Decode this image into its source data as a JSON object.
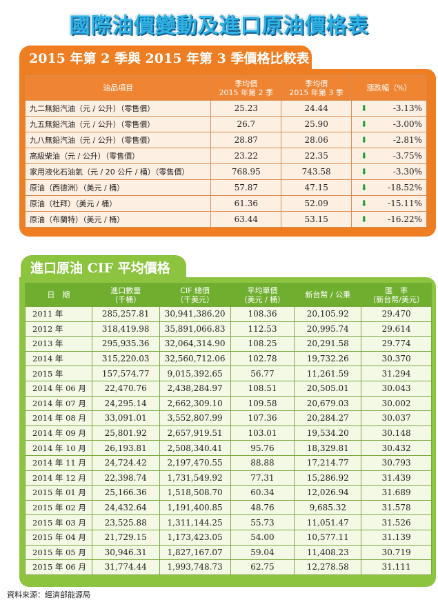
{
  "title": "國際油價變動及進口原油價格表",
  "section1": {
    "title": "2015 年第 2 季與 2015 年第 3 季價格比較表",
    "headers": {
      "item": "油品項目",
      "q2_l1": "季均價",
      "q2_l2": "2015 年第 2 季",
      "q3_l1": "季均價",
      "q3_l2": "2015 年第 3 季",
      "change": "漲跌幅（%）"
    },
    "arrow": "⬇",
    "rows": [
      {
        "item": "九二無鉛汽油（元 / 公升）（零售價）",
        "q2": "25.23",
        "q3": "24.44",
        "pct": "-3.13%"
      },
      {
        "item": "九五無鉛汽油（元 / 公升）（零售價）",
        "q2": "26.7",
        "q3": "25.90",
        "pct": "-3.00%"
      },
      {
        "item": "九八無鉛汽油（元 / 公升）（零售價）",
        "q2": "28.87",
        "q3": "28.06",
        "pct": "-2.81%"
      },
      {
        "item": "高級柴油（元 / 公升）（零售價）",
        "q2": "23.22",
        "q3": "22.35",
        "pct": "-3.75%"
      },
      {
        "item": "家用液化石油氣（元 / 20 公斤 / 桶）（零售價）",
        "q2": "768.95",
        "q3": "743.58",
        "pct": "-3.30%"
      },
      {
        "item": "原油（西德洲）（美元 / 桶）",
        "q2": "57.87",
        "q3": "47.15",
        "pct": "-18.52%"
      },
      {
        "item": "原油（杜拜）（美元 / 桶）",
        "q2": "61.36",
        "q3": "52.09",
        "pct": "-15.11%"
      },
      {
        "item": "原油（布蘭特）（美元 / 桶）",
        "q2": "63.44",
        "q3": "53.15",
        "pct": "-16.22%"
      }
    ]
  },
  "section2": {
    "title": "進口原油 CIF 平均價格",
    "headers": {
      "date": "日　期",
      "qty_l1": "進口數量",
      "qty_l2": "（千桶）",
      "cif_l1": "CIF 總價",
      "cif_l2": "（千美元）",
      "avg_l1": "平均單價",
      "avg_l2": "（美元 / 桶）",
      "ntd": "新台幣 / 公秉",
      "rate_l1": "匯　率",
      "rate_l2": "（新台幣/美元）"
    },
    "rows": [
      {
        "date": "2011 年",
        "qty": "285,257.81",
        "cif": "30,941,386.20",
        "avg": "108.36",
        "ntd": "20,105.92",
        "rate": "29.470"
      },
      {
        "date": "2012 年",
        "qty": "318,419.98",
        "cif": "35,891,066.83",
        "avg": "112.53",
        "ntd": "20,995.74",
        "rate": "29.614"
      },
      {
        "date": "2013 年",
        "qty": "295,935.36",
        "cif": "32,064,314.90",
        "avg": "108.25",
        "ntd": "20,291.58",
        "rate": "29.774"
      },
      {
        "date": "2014 年",
        "qty": "315,220.03",
        "cif": "32,560,712.06",
        "avg": "102.78",
        "ntd": "19,732.26",
        "rate": "30.370"
      },
      {
        "date": "2015 年",
        "qty": "157,574.77",
        "cif": "9,015,392.65",
        "avg": "56.77",
        "ntd": "11,261.59",
        "rate": "31.294"
      },
      {
        "date": "2014 年 06 月",
        "qty": "22,470.76",
        "cif": "2,438,284.97",
        "avg": "108.51",
        "ntd": "20,505.01",
        "rate": "30.043"
      },
      {
        "date": "2014 年 07 月",
        "qty": "24,295.14",
        "cif": "2,662,309.10",
        "avg": "109.58",
        "ntd": "20,679.03",
        "rate": "30.002"
      },
      {
        "date": "2014 年 08 月",
        "qty": "33,091.01",
        "cif": "3,552,807.99",
        "avg": "107.36",
        "ntd": "20,284.27",
        "rate": "30.037"
      },
      {
        "date": "2014 年 09 月",
        "qty": "25,801.92",
        "cif": "2,657,919.51",
        "avg": "103.01",
        "ntd": "19,534.20",
        "rate": "30.148"
      },
      {
        "date": "2014 年 10 月",
        "qty": "26,193.81",
        "cif": "2,508,340.41",
        "avg": "95.76",
        "ntd": "18,329.81",
        "rate": "30.432"
      },
      {
        "date": "2014 年 11 月",
        "qty": "24,724.42",
        "cif": "2,197,470.55",
        "avg": "88.88",
        "ntd": "17,214.77",
        "rate": "30.793"
      },
      {
        "date": "2014 年 12 月",
        "qty": "22,398.74",
        "cif": "1,731,549.92",
        "avg": "77.31",
        "ntd": "15,286.92",
        "rate": "31.439"
      },
      {
        "date": "2015 年 01 月",
        "qty": "25,166.36",
        "cif": "1,518,508.70",
        "avg": "60.34",
        "ntd": "12,026.94",
        "rate": "31.689"
      },
      {
        "date": "2015 年 02 月",
        "qty": "24,432.64",
        "cif": "1,191,400.85",
        "avg": "48.76",
        "ntd": "9,685.32",
        "rate": "31.578"
      },
      {
        "date": "2015 年 03 月",
        "qty": "23,525.88",
        "cif": "1,311,144.25",
        "avg": "55.73",
        "ntd": "11,051.47",
        "rate": "31.526"
      },
      {
        "date": "2015 年 04 月",
        "qty": "21,729.15",
        "cif": "1,173,423.05",
        "avg": "54.00",
        "ntd": "10,577.11",
        "rate": "31.139"
      },
      {
        "date": "2015 年 05 月",
        "qty": "30,946.31",
        "cif": "1,827,167.07",
        "avg": "59.04",
        "ntd": "11,408.23",
        "rate": "30.719"
      },
      {
        "date": "2015 年 06 月",
        "qty": "31,774.44",
        "cif": "1,993,748.73",
        "avg": "62.75",
        "ntd": "12,278.58",
        "rate": "31.111"
      }
    ]
  },
  "source": "資料來源：經濟部能源局",
  "colors": {
    "title": "#2fb2e6",
    "orange": "#ef7d21",
    "green": "#8cc43f",
    "arrow": "#1f9d3a"
  }
}
